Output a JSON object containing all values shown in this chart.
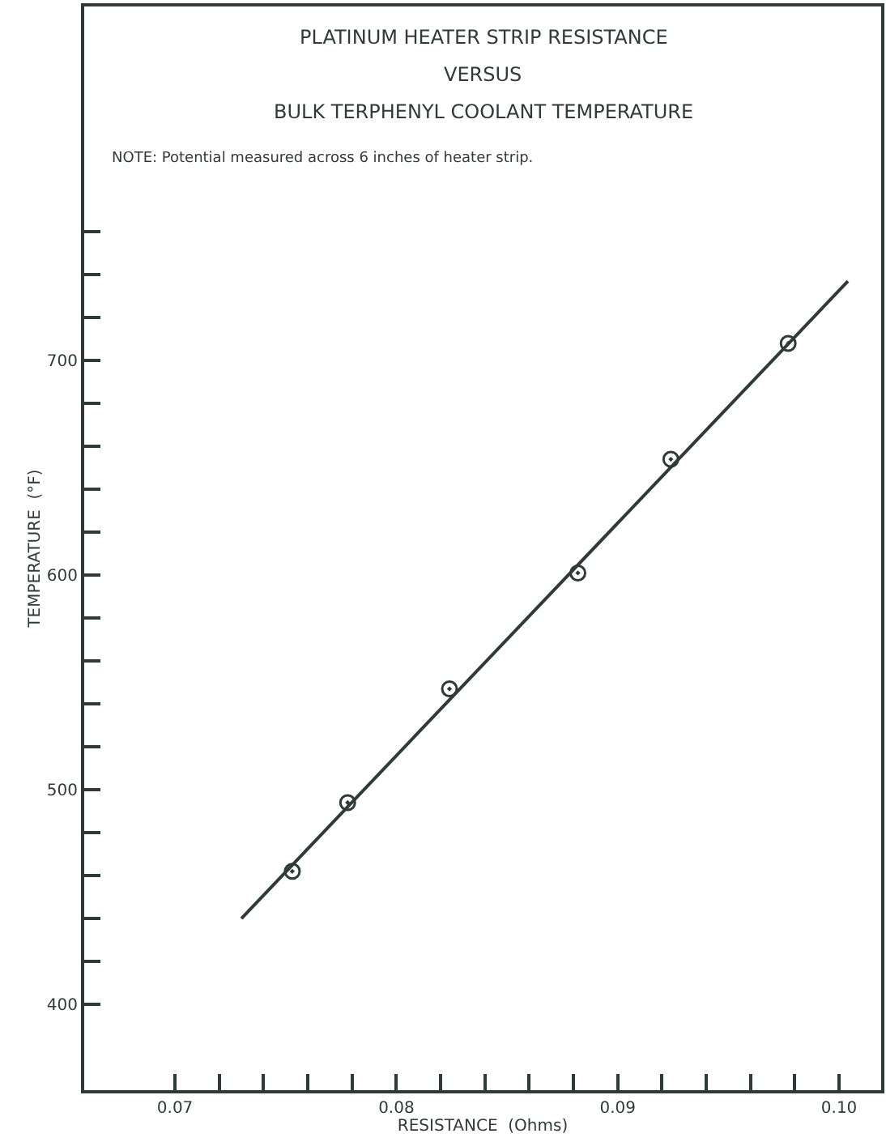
{
  "chart_data": {
    "type": "scatter",
    "title": "PLATINUM HEATER STRIP RESISTANCE\nVERSUS\nBULK TERPHENYL COOLANT TEMPERATURE",
    "annotations": [
      "NOTE: Potential measured across 6 inches of heater strip."
    ],
    "xlabel": "RESISTANCE  (Ohms)",
    "ylabel": "TEMPERATURE  (°F)",
    "series": [
      {
        "color": "#2f3b36",
        "marker": "circle",
        "x": [
          0.0753,
          0.0778,
          0.0824,
          0.0882,
          0.0924,
          0.0977
        ],
        "values": [
          462,
          494,
          547,
          601,
          654,
          708
        ]
      },
      {
        "type": "line",
        "color": "#2f3b36",
        "x": [
          0.073,
          0.1004
        ],
        "values": [
          440,
          737
        ]
      }
    ],
    "xlim": [
      0.0659,
      0.1019
    ],
    "ylim": [
      360,
      865
    ],
    "xticks": [
      {
        "value": 0.07,
        "label": "0.07"
      },
      {
        "value": 0.072,
        "label": null
      },
      {
        "value": 0.074,
        "label": null
      },
      {
        "value": 0.076,
        "label": null
      },
      {
        "value": 0.078,
        "label": null
      },
      {
        "value": 0.08,
        "label": "0.08"
      },
      {
        "value": 0.082,
        "label": null
      },
      {
        "value": 0.084,
        "label": null
      },
      {
        "value": 0.086,
        "label": null
      },
      {
        "value": 0.088,
        "label": null
      },
      {
        "value": 0.09,
        "label": "0.09"
      },
      {
        "value": 0.092,
        "label": null
      },
      {
        "value": 0.094,
        "label": null
      },
      {
        "value": 0.096,
        "label": null
      },
      {
        "value": 0.098,
        "label": null
      },
      {
        "value": 0.1,
        "label": "0.10"
      }
    ],
    "yticks": [
      400,
      {
        "value": 420,
        "label": null
      },
      {
        "value": 440,
        "label": null
      },
      {
        "value": 460,
        "label": null
      },
      {
        "value": 480,
        "label": null
      },
      500,
      {
        "value": 520,
        "label": null
      },
      {
        "value": 540,
        "label": null
      },
      {
        "value": 560,
        "label": null
      },
      {
        "value": 580,
        "label": null
      },
      600,
      {
        "value": 620,
        "label": null
      },
      {
        "value": 640,
        "label": null
      },
      {
        "value": 660,
        "label": null
      },
      {
        "value": 680,
        "label": null
      },
      700,
      {
        "value": 720,
        "label": null
      },
      {
        "value": 740,
        "label": null
      },
      {
        "value": 760,
        "label": null
      }
    ]
  }
}
